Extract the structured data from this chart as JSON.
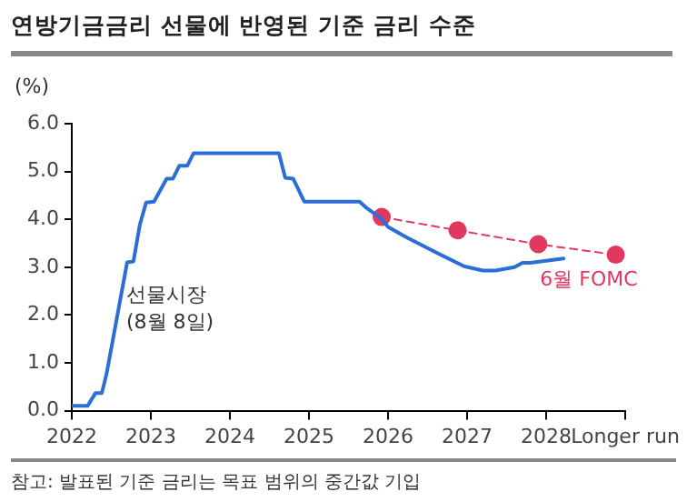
{
  "chart_data": {
    "type": "line",
    "title": "연방기금금리 선물에 반영된 기준 금리 수준",
    "ylabel": "(%)",
    "annotations": [
      "참고: 발표된 기준 금리는 목표 범위의 중간값 기입"
    ],
    "xlim": [
      2022,
      2029
    ],
    "xticks": [
      2022,
      2023,
      2024,
      2025,
      2026,
      2027,
      2028,
      {
        "value": 2029,
        "label": "Longer run"
      }
    ],
    "ylim": [
      0,
      6
    ],
    "yticks": [
      {
        "value": 0,
        "label": "0.0"
      },
      {
        "value": 1,
        "label": "1.0"
      },
      {
        "value": 2,
        "label": "2.0"
      },
      {
        "value": 3,
        "label": "3.0"
      },
      {
        "value": 4,
        "label": "4.0"
      },
      {
        "value": 5,
        "label": "5.0"
      },
      {
        "value": 6,
        "label": "6.0"
      }
    ],
    "grid": false,
    "legend": false,
    "series": [
      {
        "name": "선물시장\n(8월 8일)",
        "color": "#2b6fd6",
        "marker": "none",
        "line_style": "solid",
        "x": [
          2022.0,
          2022.2,
          2022.3,
          2022.38,
          2022.44,
          2022.7,
          2022.78,
          2022.86,
          2022.94,
          2023.04,
          2023.2,
          2023.28,
          2023.36,
          2023.46,
          2023.54,
          2024.62,
          2024.7,
          2024.8,
          2024.94,
          2025.64,
          2025.72,
          2025.92,
          2026.0,
          2026.24,
          2026.64,
          2026.96,
          2027.2,
          2027.36,
          2027.6,
          2027.7,
          2027.8,
          2028.22
        ],
        "values": [
          0.1,
          0.1,
          0.37,
          0.37,
          0.77,
          3.1,
          3.12,
          3.88,
          4.35,
          4.37,
          4.85,
          4.85,
          5.12,
          5.12,
          5.38,
          5.38,
          4.87,
          4.85,
          4.37,
          4.37,
          4.25,
          4.01,
          3.84,
          3.62,
          3.28,
          3.02,
          2.93,
          2.93,
          3.0,
          3.09,
          3.09,
          3.18
        ]
      },
      {
        "name": "6월 FOMC",
        "color": "#e0385f",
        "marker": "circle",
        "line_style": "dashed",
        "x": [
          2025.92,
          2026.88,
          2027.9,
          2028.88
        ],
        "values": [
          4.05,
          3.77,
          3.48,
          3.26
        ]
      }
    ]
  }
}
